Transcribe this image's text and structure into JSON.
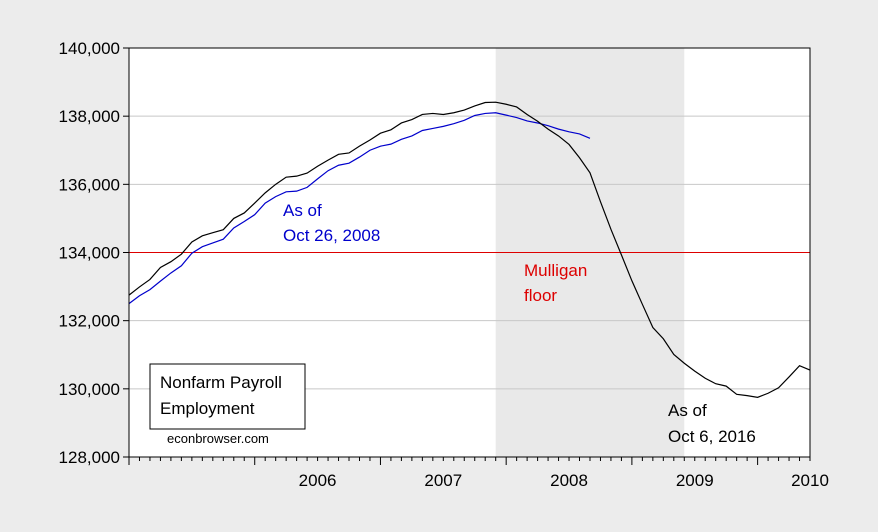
{
  "chart_data": {
    "type": "line",
    "title": "",
    "xlabel": "",
    "ylabel": "",
    "xlim": [
      "2005-01",
      "2010-06"
    ],
    "ylim": [
      128000,
      140000
    ],
    "yticks": [
      128000,
      130000,
      132000,
      134000,
      136000,
      138000,
      140000
    ],
    "ytick_labels": [
      "128,000",
      "130,000",
      "132,000",
      "134,000",
      "136,000",
      "138,000",
      "140,000"
    ],
    "xtick_labels": [
      "2006",
      "2007",
      "2008",
      "2009",
      "2010"
    ],
    "grid": true,
    "recession_shading": {
      "start": "2007-12",
      "end": "2009-06",
      "color": "#e9e9e9"
    },
    "reference_line": {
      "y": 134000,
      "color": "#dd0000",
      "label": "Mulligan\nfloor"
    },
    "series": [
      {
        "color": "#000000",
        "label": "As of\nOct 6, 2016",
        "x": [
          "2005-01",
          "2005-02",
          "2005-03",
          "2005-04",
          "2005-05",
          "2005-06",
          "2005-07",
          "2005-08",
          "2005-09",
          "2005-10",
          "2005-11",
          "2005-12",
          "2006-01",
          "2006-02",
          "2006-03",
          "2006-04",
          "2006-05",
          "2006-06",
          "2006-07",
          "2006-08",
          "2006-09",
          "2006-10",
          "2006-11",
          "2006-12",
          "2007-01",
          "2007-02",
          "2007-03",
          "2007-04",
          "2007-05",
          "2007-06",
          "2007-07",
          "2007-08",
          "2007-09",
          "2007-10",
          "2007-11",
          "2007-12",
          "2008-01",
          "2008-02",
          "2008-03",
          "2008-04",
          "2008-05",
          "2008-06",
          "2008-07",
          "2008-08",
          "2008-09",
          "2008-10",
          "2008-11",
          "2008-12",
          "2009-01",
          "2009-02",
          "2009-03",
          "2009-04",
          "2009-05",
          "2009-06",
          "2009-07",
          "2009-08",
          "2009-09",
          "2009-10",
          "2009-11",
          "2009-12",
          "2010-01",
          "2010-02",
          "2010-03",
          "2010-04",
          "2010-05",
          "2010-06"
        ],
        "values": [
          132750,
          132990,
          133210,
          133560,
          133730,
          133950,
          134310,
          134490,
          134580,
          134670,
          135000,
          135160,
          135450,
          135750,
          136000,
          136210,
          136240,
          136330,
          136530,
          136710,
          136880,
          136920,
          137120,
          137300,
          137500,
          137600,
          137800,
          137900,
          138050,
          138080,
          138050,
          138100,
          138180,
          138300,
          138400,
          138410,
          138350,
          138270,
          138050,
          137850,
          137620,
          137420,
          137170,
          136780,
          136340,
          135490,
          134680,
          133930,
          133170,
          132480,
          131800,
          131470,
          131010,
          130750,
          130520,
          130310,
          130150,
          130080,
          129840,
          129800,
          129750,
          129870,
          130030,
          130350,
          130680,
          130550
        ]
      },
      {
        "color": "#0000cc",
        "label": "As of\nOct 26, 2008",
        "x": [
          "2005-01",
          "2005-02",
          "2005-03",
          "2005-04",
          "2005-05",
          "2005-06",
          "2005-07",
          "2005-08",
          "2005-09",
          "2005-10",
          "2005-11",
          "2005-12",
          "2006-01",
          "2006-02",
          "2006-03",
          "2006-04",
          "2006-05",
          "2006-06",
          "2006-07",
          "2006-08",
          "2006-09",
          "2006-10",
          "2006-11",
          "2006-12",
          "2007-01",
          "2007-02",
          "2007-03",
          "2007-04",
          "2007-05",
          "2007-06",
          "2007-07",
          "2007-08",
          "2007-09",
          "2007-10",
          "2007-11",
          "2007-12",
          "2008-01",
          "2008-02",
          "2008-03",
          "2008-04",
          "2008-05",
          "2008-06",
          "2008-07",
          "2008-08",
          "2008-09"
        ],
        "values": [
          132500,
          132730,
          132910,
          133160,
          133400,
          133610,
          133980,
          134170,
          134280,
          134390,
          134720,
          134910,
          135110,
          135450,
          135640,
          135780,
          135800,
          135910,
          136160,
          136400,
          136560,
          136620,
          136800,
          137000,
          137120,
          137180,
          137320,
          137420,
          137580,
          137640,
          137700,
          137780,
          137880,
          138020,
          138080,
          138100,
          138030,
          137960,
          137860,
          137800,
          137720,
          137620,
          137540,
          137480,
          137350
        ]
      }
    ],
    "legend_box": {
      "line1": "Nonfarm Payroll",
      "line2": "Employment"
    },
    "watermark": "econbrowser.com"
  }
}
